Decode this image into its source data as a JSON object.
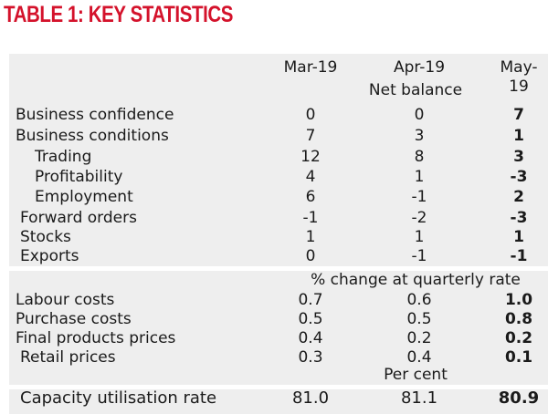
{
  "title": "TABLE 1: KEY STATISTICS",
  "columns": [
    "Mar-19",
    "Apr-19",
    "May-19"
  ],
  "sections": {
    "net_balance": "Net balance",
    "quarterly": "% change at quarterly rate",
    "per_cent": "Per cent"
  },
  "rows": [
    {
      "label": "Business confidence",
      "values": [
        "0",
        "0",
        "7"
      ]
    },
    {
      "label": "Business conditions",
      "values": [
        "7",
        "3",
        "1"
      ]
    },
    {
      "label": "Trading",
      "values": [
        "12",
        "8",
        "3"
      ]
    },
    {
      "label": "Profitability",
      "values": [
        "4",
        "1",
        "-3"
      ]
    },
    {
      "label": "Employment",
      "values": [
        "6",
        "-1",
        "2"
      ]
    },
    {
      "label": "Forward orders",
      "values": [
        "-1",
        "-2",
        "-3"
      ]
    },
    {
      "label": "Stocks",
      "values": [
        "1",
        "1",
        "1"
      ]
    },
    {
      "label": "Exports",
      "values": [
        "0",
        "-1",
        "-1"
      ]
    },
    {
      "label": "Labour costs",
      "values": [
        "0.7",
        "0.6",
        "1.0"
      ]
    },
    {
      "label": "Purchase costs",
      "values": [
        "0.5",
        "0.5",
        "0.8"
      ]
    },
    {
      "label": "Final products prices",
      "values": [
        "0.4",
        "0.2",
        "0.2"
      ]
    },
    {
      "label": "Retail prices",
      "values": [
        "0.3",
        "0.4",
        "0.1"
      ]
    },
    {
      "label": "Capacity utilisation rate",
      "values": [
        "81.0",
        "81.1",
        "80.9"
      ]
    }
  ]
}
